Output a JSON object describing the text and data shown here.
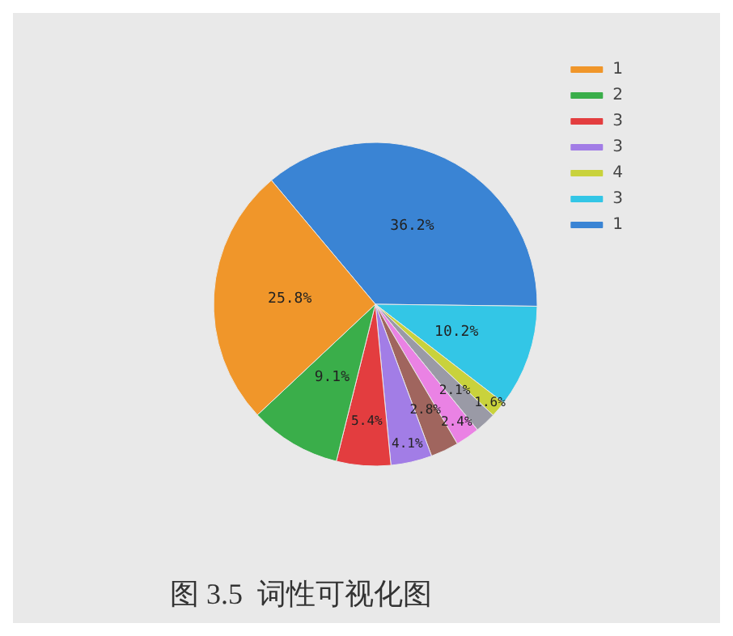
{
  "chart_data": {
    "type": "pie",
    "annotations": [
      "图 3.5  词性可视化图"
    ],
    "categories": [
      "1",
      "3",
      "4",
      null,
      null,
      null,
      "3",
      "3",
      "2",
      "1"
    ],
    "values": [
      36.2,
      10.2,
      1.6,
      2.1,
      2.4,
      2.8,
      4.1,
      5.4,
      9.1,
      25.8
    ],
    "colors": [
      "#3a84d4",
      "#33c6e6",
      "#c9d23c",
      "#9a9aa6",
      "#ea82e4",
      "#a0655e",
      "#a27de6",
      "#e33d3f",
      "#3aae4a",
      "#f0962a"
    ],
    "value_labels": [
      "36.2%",
      "10.2%",
      "1.6%",
      "2.1%",
      "2.4%",
      "2.8%",
      "4.1%",
      "5.4%",
      "9.1%",
      "25.8%"
    ],
    "legend": "top right"
  }
}
